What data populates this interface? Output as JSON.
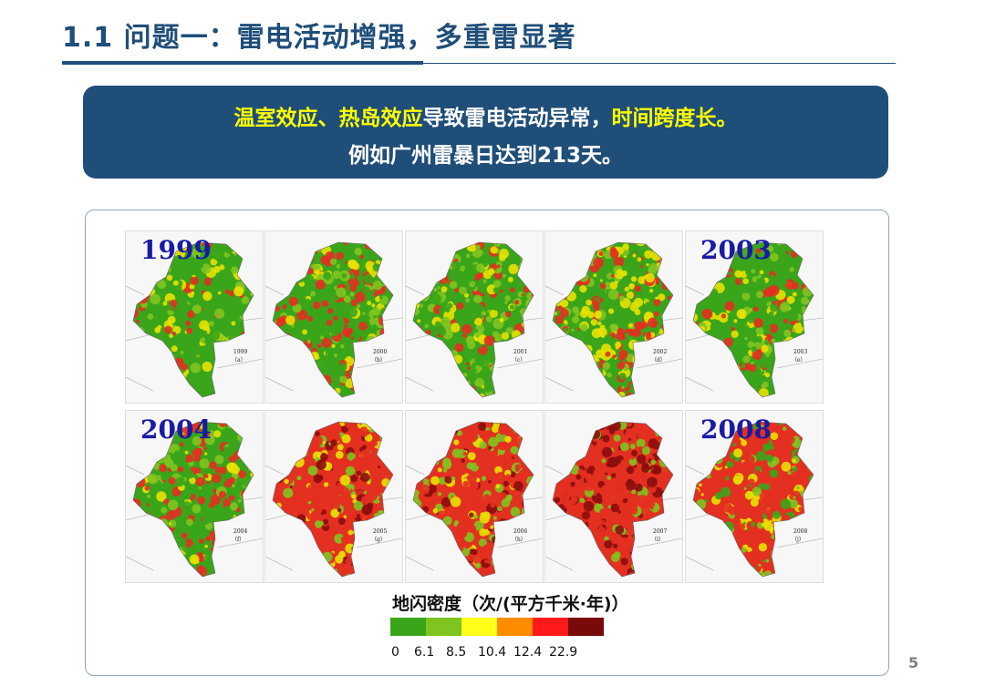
{
  "slide": {
    "title": "1.1 问题一：雷电活动增强，多重雷显著",
    "banner": {
      "line1_parts": [
        {
          "text": "温室效应、热岛效应",
          "highlight": true
        },
        {
          "text": "导致雷电活动异常，",
          "highlight": false
        },
        {
          "text": "时间跨度长。",
          "highlight": true
        }
      ],
      "line2": "例如广州雷暴日达到213天。"
    },
    "page_number": "5"
  },
  "maps": {
    "grid": [
      {
        "year": "1999",
        "show_label": true,
        "caption_year": "1999",
        "caption_idx": "（a）",
        "palette": [
          "#3aa51a",
          "#3aa51a",
          "#7fc41f",
          "#3aa51a",
          "#e8e200",
          "#e33020"
        ]
      },
      {
        "year": "2000",
        "show_label": false,
        "caption_year": "2000",
        "caption_idx": "（b）",
        "palette": [
          "#3aa51a",
          "#7fc41f",
          "#e8e200",
          "#e33020",
          "#e33020",
          "#3aa51a"
        ]
      },
      {
        "year": "2001",
        "show_label": false,
        "caption_year": "2001",
        "caption_idx": "（c）",
        "palette": [
          "#3aa51a",
          "#3aa51a",
          "#7fc41f",
          "#7fc41f",
          "#e8e200",
          "#e33020"
        ]
      },
      {
        "year": "2002",
        "show_label": false,
        "caption_year": "2002",
        "caption_idx": "（d）",
        "palette": [
          "#3aa51a",
          "#7fc41f",
          "#e8e200",
          "#e33020",
          "#e33020",
          "#e8e200"
        ]
      },
      {
        "year": "2003",
        "show_label": true,
        "caption_year": "2003",
        "caption_idx": "（e）",
        "palette": [
          "#3aa51a",
          "#3aa51a",
          "#3aa51a",
          "#7fc41f",
          "#e8e200",
          "#e33020"
        ]
      },
      {
        "year": "2004",
        "show_label": true,
        "caption_year": "2004",
        "caption_idx": "（f）",
        "palette": [
          "#3aa51a",
          "#e33020",
          "#e33020",
          "#e8e200",
          "#7fc41f",
          "#3aa51a"
        ]
      },
      {
        "year": "2005",
        "show_label": false,
        "caption_year": "2005",
        "caption_idx": "（g）",
        "palette": [
          "#e33020",
          "#e33020",
          "#e33020",
          "#e8e200",
          "#7fc41f",
          "#8b0d0d"
        ]
      },
      {
        "year": "2006",
        "show_label": false,
        "caption_year": "2006",
        "caption_idx": "（h）",
        "palette": [
          "#e33020",
          "#e33020",
          "#e8e200",
          "#7fc41f",
          "#e33020",
          "#8b0d0d"
        ]
      },
      {
        "year": "2007",
        "show_label": false,
        "caption_year": "2007",
        "caption_idx": "（i）",
        "palette": [
          "#e33020",
          "#e33020",
          "#8b0d0d",
          "#8b0d0d",
          "#e33020",
          "#7fc41f"
        ]
      },
      {
        "year": "2008",
        "show_label": true,
        "caption_year": "2008",
        "caption_idx": "（j）",
        "palette": [
          "#e33020",
          "#e33020",
          "#e8e200",
          "#7fc41f",
          "#3aa51a",
          "#e33020"
        ]
      }
    ]
  },
  "legend": {
    "title": "地闪密度（次/(平方千米·年)）",
    "colors": [
      "#3aa51a",
      "#7fc41f",
      "#ffff1a",
      "#ff8c00",
      "#ff1a1a",
      "#7a0a0a"
    ],
    "tick_labels": [
      "0",
      "6.1",
      "8.5",
      "10.4",
      "12.4",
      "22.9"
    ]
  }
}
